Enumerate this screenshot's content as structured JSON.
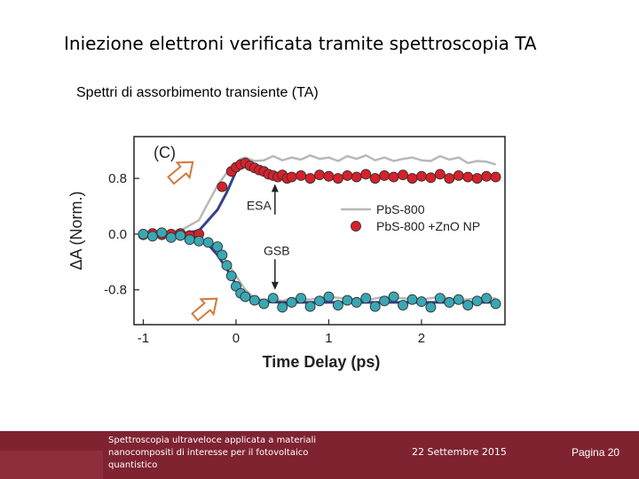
{
  "slide": {
    "title": "Iniezione elettroni verificata tramite spettroscopia TA",
    "subtitle": "Spettri di assorbimento transiente (TA)"
  },
  "footer": {
    "description": "Spettroscopia ultraveloce applicata a materiali nanocompositi di interesse per il fotovoltaico quantistico",
    "date": "22 Settembre 2015",
    "page": "Pagina 20",
    "color": "#7f2331"
  },
  "chart_data": {
    "type": "scatter",
    "panel_label": "(C)",
    "xlabel": "Time Delay (ps)",
    "ylabel": "ΔA (Norm.)",
    "xlim": [
      -1.1,
      2.9
    ],
    "ylim": [
      -1.3,
      1.4
    ],
    "x_ticks": [
      -1,
      0,
      1,
      2
    ],
    "x_tick_labels": [
      "-1",
      "0",
      "1",
      "2"
    ],
    "y_ticks": [
      0.8,
      0.0,
      -0.8
    ],
    "y_tick_labels": [
      "0.8",
      "0.0",
      "-0.8"
    ],
    "annotations": [
      {
        "text": "ESA",
        "x": 0.42,
        "y": 0.4
      },
      {
        "text": "GSB",
        "x": 0.42,
        "y": -0.25
      }
    ],
    "legend": {
      "placement": "right",
      "entries": [
        "PbS-800",
        "PbS-800 +ZnO NP"
      ]
    },
    "colors": {
      "line_pbs": "#b8b8b8",
      "fit": "#34408c",
      "esa_marker": "#d8202b",
      "gsb_marker": "#38a8b4",
      "arrow": "#d07a3a"
    },
    "series": [
      {
        "name": "PbS-800",
        "role": "esa-line",
        "x": [
          -1.0,
          -0.8,
          -0.6,
          -0.4,
          -0.3,
          -0.2,
          -0.1,
          0.0,
          0.05,
          0.1,
          0.2,
          0.3,
          0.4,
          0.5,
          0.6,
          0.7,
          0.8,
          0.9,
          1.0,
          1.1,
          1.2,
          1.3,
          1.4,
          1.5,
          1.6,
          1.7,
          1.8,
          1.9,
          2.0,
          2.1,
          2.2,
          2.3,
          2.4,
          2.5,
          2.6,
          2.7,
          2.8
        ],
        "y": [
          0.0,
          0.02,
          0.05,
          0.2,
          0.45,
          0.7,
          0.88,
          1.0,
          1.08,
          1.1,
          1.05,
          1.06,
          1.12,
          1.06,
          1.1,
          1.07,
          1.13,
          1.08,
          1.1,
          1.05,
          1.12,
          1.08,
          1.13,
          1.06,
          1.1,
          1.05,
          1.08,
          1.1,
          1.06,
          1.05,
          1.12,
          1.07,
          1.1,
          1.02,
          1.05,
          1.04,
          1.0
        ]
      },
      {
        "name": "PbS-800",
        "role": "gsb-line",
        "x": [
          -1.0,
          -0.8,
          -0.6,
          -0.4,
          -0.2,
          -0.1,
          0.0,
          0.1,
          0.2,
          0.3,
          0.4,
          0.5,
          0.6,
          0.8,
          1.0,
          1.2,
          1.4,
          1.6,
          1.8,
          2.0,
          2.2,
          2.4,
          2.6,
          2.8
        ],
        "y": [
          0.0,
          0.0,
          -0.02,
          -0.05,
          -0.2,
          -0.4,
          -0.6,
          -0.8,
          -0.92,
          -0.95,
          -0.93,
          -0.96,
          -0.92,
          -0.94,
          -0.9,
          -0.93,
          -0.95,
          -0.9,
          -0.92,
          -0.94,
          -0.9,
          -0.95,
          -0.92,
          -0.92
        ]
      },
      {
        "name": "PbS-800 +ZnO NP",
        "role": "esa-markers",
        "x": [
          -1.0,
          -0.9,
          -0.8,
          -0.7,
          -0.6,
          -0.5,
          -0.4,
          -0.15,
          -0.05,
          0.0,
          0.05,
          0.1,
          0.15,
          0.2,
          0.25,
          0.3,
          0.35,
          0.4,
          0.45,
          0.5,
          0.55,
          0.6,
          0.7,
          0.8,
          0.9,
          1.0,
          1.1,
          1.2,
          1.3,
          1.4,
          1.5,
          1.6,
          1.7,
          1.8,
          1.9,
          2.0,
          2.1,
          2.2,
          2.3,
          2.4,
          2.5,
          2.6,
          2.7,
          2.8
        ],
        "y": [
          -0.01,
          0.01,
          -0.01,
          0.0,
          0.01,
          -0.02,
          0.0,
          0.68,
          0.9,
          0.96,
          1.0,
          1.02,
          0.98,
          0.95,
          0.92,
          0.9,
          0.86,
          0.84,
          0.82,
          0.85,
          0.8,
          0.82,
          0.84,
          0.8,
          0.85,
          0.83,
          0.8,
          0.84,
          0.82,
          0.86,
          0.8,
          0.84,
          0.82,
          0.85,
          0.8,
          0.83,
          0.81,
          0.86,
          0.8,
          0.84,
          0.82,
          0.8,
          0.83,
          0.82
        ]
      },
      {
        "name": "PbS-800 +ZnO NP",
        "role": "gsb-markers",
        "x": [
          -1.0,
          -0.9,
          -0.8,
          -0.7,
          -0.6,
          -0.5,
          -0.4,
          -0.3,
          -0.2,
          -0.15,
          -0.1,
          -0.05,
          0.0,
          0.05,
          0.1,
          0.2,
          0.3,
          0.4,
          0.5,
          0.6,
          0.7,
          0.8,
          0.9,
          1.0,
          1.1,
          1.2,
          1.3,
          1.4,
          1.5,
          1.6,
          1.7,
          1.8,
          1.9,
          2.0,
          2.1,
          2.2,
          2.3,
          2.4,
          2.5,
          2.6,
          2.7,
          2.8
        ],
        "y": [
          0.0,
          -0.03,
          0.02,
          -0.05,
          -0.02,
          -0.08,
          -0.1,
          -0.12,
          -0.18,
          -0.3,
          -0.45,
          -0.6,
          -0.75,
          -0.85,
          -0.9,
          -0.95,
          -1.0,
          -0.92,
          -1.05,
          -0.98,
          -0.92,
          -1.04,
          -0.96,
          -0.9,
          -1.02,
          -0.95,
          -0.98,
          -0.92,
          -1.04,
          -0.96,
          -0.9,
          -1.02,
          -0.94,
          -0.97,
          -1.05,
          -0.92,
          -0.98,
          -0.94,
          -1.02,
          -0.96,
          -0.92,
          -1.0
        ]
      },
      {
        "name": "fit",
        "role": "esa-fit",
        "x": [
          -1.0,
          -0.6,
          -0.4,
          -0.2,
          -0.1,
          0.0,
          0.05,
          0.1,
          0.2,
          0.3,
          0.5,
          0.8,
          1.2,
          2.0,
          2.8
        ],
        "y": [
          0.0,
          0.0,
          0.05,
          0.35,
          0.6,
          0.9,
          0.97,
          1.0,
          0.96,
          0.9,
          0.85,
          0.83,
          0.83,
          0.83,
          0.83
        ]
      },
      {
        "name": "fit",
        "role": "gsb-fit",
        "x": [
          -1.0,
          -0.6,
          -0.4,
          -0.3,
          -0.2,
          -0.1,
          0.0,
          0.1,
          0.2,
          0.3,
          0.5,
          0.8,
          1.2,
          2.0,
          2.8
        ],
        "y": [
          0.0,
          -0.02,
          -0.08,
          -0.15,
          -0.3,
          -0.5,
          -0.72,
          -0.87,
          -0.94,
          -0.97,
          -0.98,
          -0.98,
          -0.98,
          -0.98,
          -0.98
        ]
      }
    ]
  }
}
